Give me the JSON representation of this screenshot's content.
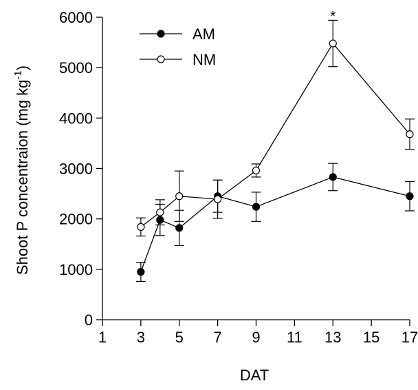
{
  "chart_data": {
    "type": "line",
    "title": "",
    "xlabel": "DAT",
    "ylabel": "Shoot P concentraion (mg kg",
    "ylabel_exponent": "-1",
    "ylabel_suffix": ")",
    "xlim": [
      1,
      17
    ],
    "ylim": [
      0,
      6000
    ],
    "xticks": [
      1,
      3,
      5,
      7,
      9,
      11,
      13,
      15,
      17
    ],
    "yticks": [
      0,
      1000,
      2000,
      3000,
      4000,
      5000,
      6000
    ],
    "grid": false,
    "legend_position": "top-left",
    "series": [
      {
        "name": "AM",
        "marker": "filled-circle",
        "x": [
          3,
          4,
          5,
          7,
          9,
          13,
          17
        ],
        "y": [
          950,
          1980,
          1820,
          2450,
          2240,
          2830,
          2450
        ],
        "error": [
          190,
          310,
          350,
          320,
          290,
          270,
          290
        ]
      },
      {
        "name": "NM",
        "marker": "open-circle",
        "x": [
          3,
          4,
          5,
          7,
          9,
          13,
          17
        ],
        "y": [
          1840,
          2130,
          2450,
          2390,
          2960,
          5480,
          3680
        ],
        "error": [
          180,
          250,
          500,
          380,
          130,
          460,
          300
        ]
      }
    ],
    "annotations": [
      {
        "text": "*",
        "x": 13,
        "y": 5960
      }
    ]
  }
}
